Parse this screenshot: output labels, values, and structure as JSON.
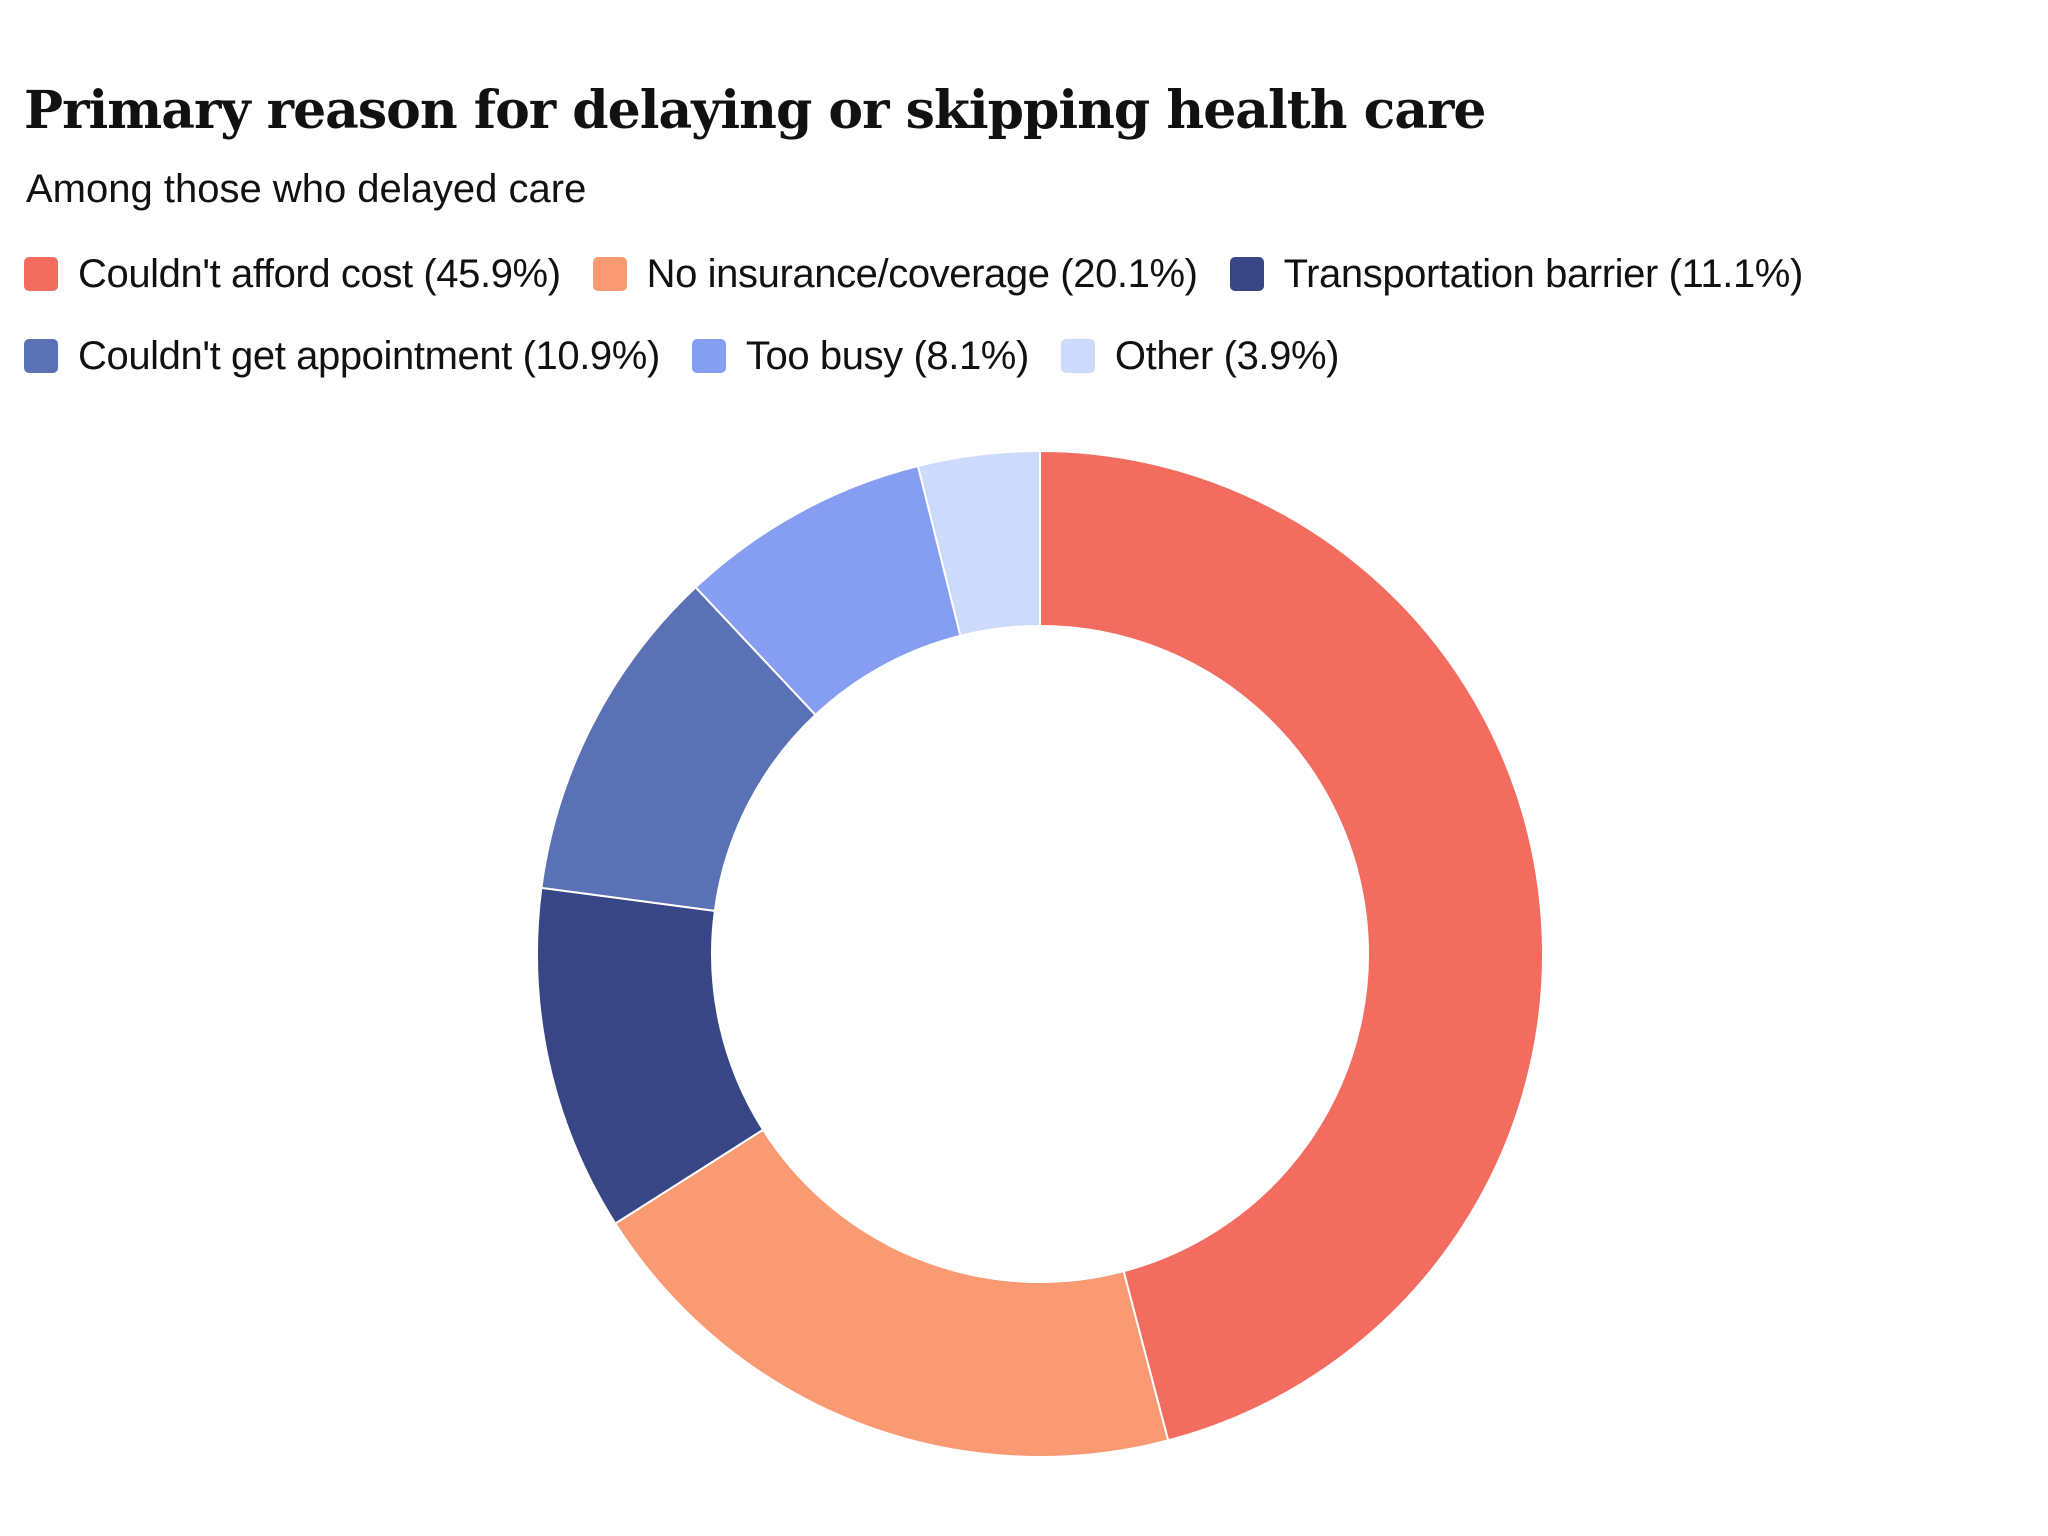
{
  "chart_data": {
    "type": "pie",
    "title": "Primary reason for delaying or skipping health care",
    "subtitle": "Among those who delayed care",
    "legend_position": "top",
    "donut": true,
    "slices": [
      {
        "label": "Couldn't afford cost (45.9%)",
        "value": 45.9,
        "color": "#F36C60"
      },
      {
        "label": "No insurance/coverage (20.1%)",
        "value": 20.1,
        "color": "#FA9A73"
      },
      {
        "label": "Transportation barrier (11.1%)",
        "value": 11.1,
        "color": "#384686"
      },
      {
        "label": "Couldn't get appointment (10.9%)",
        "value": 10.9,
        "color": "#5A72B5"
      },
      {
        "label": "Too busy (8.1%)",
        "value": 8.1,
        "color": "#869EF2"
      },
      {
        "label": "Other (3.9%)",
        "value": 3.9,
        "color": "#CCDAFC"
      }
    ]
  }
}
